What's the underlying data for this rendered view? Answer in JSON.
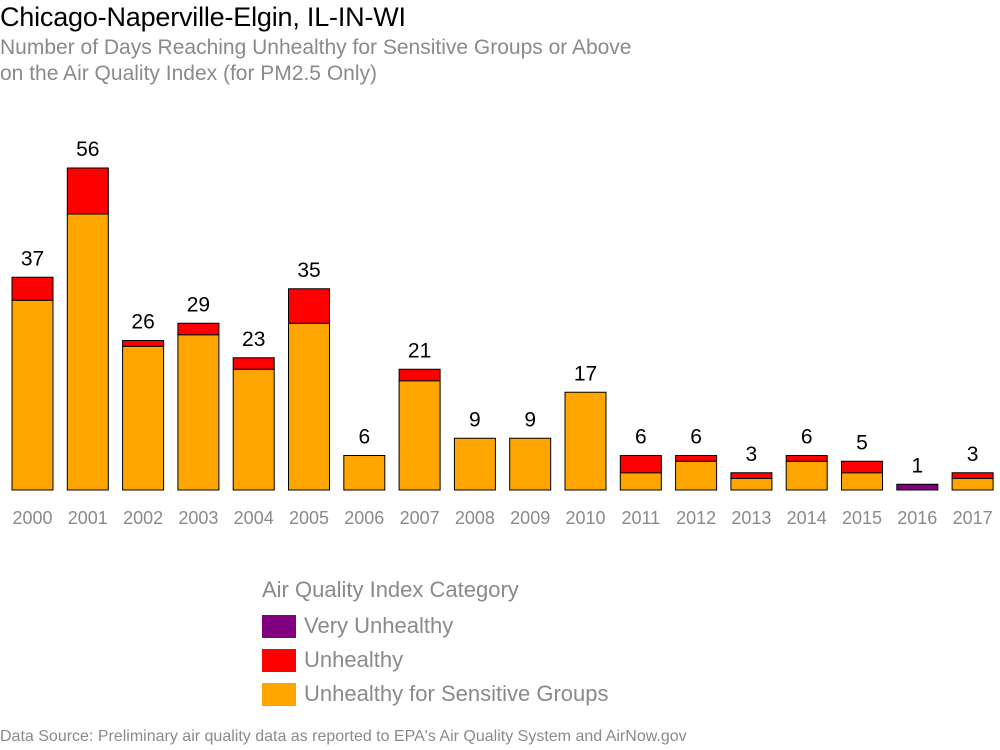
{
  "header": {
    "title": "Chicago-Naperville-Elgin, IL-IN-WI",
    "subtitle_line1": "Number of Days Reaching Unhealthy for Sensitive Groups or Above",
    "subtitle_line2": "on the Air Quality Index (for PM2.5 Only)"
  },
  "legend": {
    "title": "Air Quality Index Category",
    "items": [
      {
        "label": "Very Unhealthy",
        "color": "#800080"
      },
      {
        "label": "Unhealthy",
        "color": "#ff0000"
      },
      {
        "label": "Unhealthy for Sensitive Groups",
        "color": "#ffa500"
      }
    ]
  },
  "footer": {
    "source": "Data Source: Preliminary air quality data as reported to EPA's Air Quality System and AirNow.gov"
  },
  "chart_data": {
    "type": "bar",
    "stacked": true,
    "categories": [
      "2000",
      "2001",
      "2002",
      "2003",
      "2004",
      "2005",
      "2006",
      "2007",
      "2008",
      "2009",
      "2010",
      "2011",
      "2012",
      "2013",
      "2014",
      "2015",
      "2016",
      "2017"
    ],
    "series": [
      {
        "name": "Unhealthy for Sensitive Groups",
        "color": "#ffa500",
        "values": [
          33,
          48,
          25,
          27,
          21,
          29,
          6,
          19,
          9,
          9,
          17,
          3,
          5,
          2,
          5,
          3,
          0,
          2
        ]
      },
      {
        "name": "Unhealthy",
        "color": "#ff0000",
        "values": [
          4,
          8,
          1,
          2,
          2,
          6,
          0,
          2,
          0,
          0,
          0,
          3,
          1,
          1,
          1,
          2,
          0,
          1
        ]
      },
      {
        "name": "Very Unhealthy",
        "color": "#800080",
        "values": [
          0,
          0,
          0,
          0,
          0,
          0,
          0,
          0,
          0,
          0,
          0,
          0,
          0,
          0,
          0,
          0,
          1,
          0
        ]
      }
    ],
    "totals": [
      37,
      56,
      26,
      29,
      23,
      35,
      6,
      21,
      9,
      9,
      17,
      6,
      6,
      3,
      6,
      5,
      1,
      3
    ],
    "ylim": [
      0,
      56
    ],
    "grid": false,
    "legend_position": "bottom"
  }
}
